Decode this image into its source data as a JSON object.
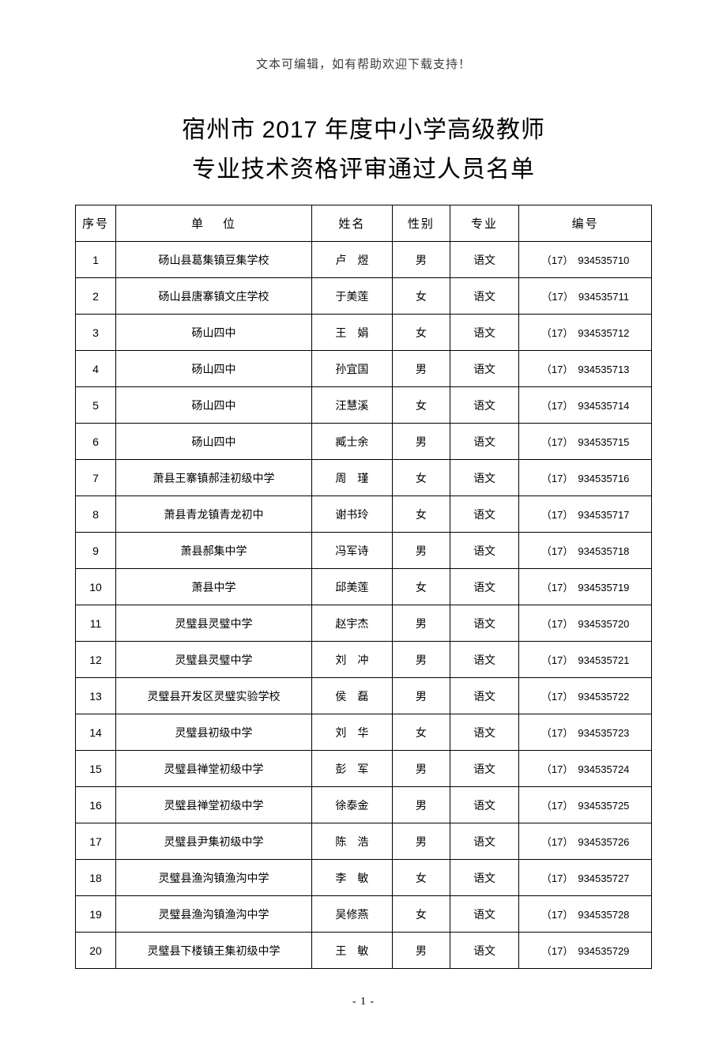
{
  "header_note": "文本可编辑，如有帮助欢迎下载支持！",
  "title_line_1_prefix": "宿州市 ",
  "title_line_1_year": "2017",
  "title_line_1_suffix": " 年度中小学高级教师",
  "title_line_2": "专业技术资格评审通过人员名单",
  "columns": {
    "seq": "序号",
    "unit_a": "单",
    "unit_b": "位",
    "name": "姓名",
    "gender": "性别",
    "subject": "专业",
    "code": "编号"
  },
  "code_prefix": "（17）",
  "page_number": "- 1 -",
  "rows": [
    {
      "seq": "1",
      "unit": "砀山县葛集镇豆集学校",
      "name": "卢　煜",
      "name_spaced": true,
      "gender": "男",
      "subject": "语文",
      "code": "934535710"
    },
    {
      "seq": "2",
      "unit": "砀山县唐寨镇文庄学校",
      "name": "于美莲",
      "name_spaced": false,
      "gender": "女",
      "subject": "语文",
      "code": "934535711"
    },
    {
      "seq": "3",
      "unit": "砀山四中",
      "name": "王　娟",
      "name_spaced": true,
      "gender": "女",
      "subject": "语文",
      "code": "934535712"
    },
    {
      "seq": "4",
      "unit": "砀山四中",
      "name": "孙宜国",
      "name_spaced": false,
      "gender": "男",
      "subject": "语文",
      "code": "934535713"
    },
    {
      "seq": "5",
      "unit": "砀山四中",
      "name": "汪慧溪",
      "name_spaced": false,
      "gender": "女",
      "subject": "语文",
      "code": "934535714"
    },
    {
      "seq": "6",
      "unit": "砀山四中",
      "name": "臧士余",
      "name_spaced": false,
      "gender": "男",
      "subject": "语文",
      "code": "934535715"
    },
    {
      "seq": "7",
      "unit": "萧县王寨镇郝洼初级中学",
      "name": "周　瑾",
      "name_spaced": true,
      "gender": "女",
      "subject": "语文",
      "code": "934535716"
    },
    {
      "seq": "8",
      "unit": "萧县青龙镇青龙初中",
      "name": "谢书玲",
      "name_spaced": false,
      "gender": "女",
      "subject": "语文",
      "code": "934535717"
    },
    {
      "seq": "9",
      "unit": "萧县郝集中学",
      "name": "冯军诗",
      "name_spaced": false,
      "gender": "男",
      "subject": "语文",
      "code": "934535718"
    },
    {
      "seq": "10",
      "unit": "萧县中学",
      "name": "邱美莲",
      "name_spaced": false,
      "gender": "女",
      "subject": "语文",
      "code": "934535719"
    },
    {
      "seq": "11",
      "unit": "灵璧县灵璧中学",
      "name": "赵宇杰",
      "name_spaced": false,
      "gender": "男",
      "subject": "语文",
      "code": "934535720"
    },
    {
      "seq": "12",
      "unit": "灵璧县灵璧中学",
      "name": "刘　冲",
      "name_spaced": true,
      "gender": "男",
      "subject": "语文",
      "code": "934535721"
    },
    {
      "seq": "13",
      "unit": "灵璧县开发区灵璧实验学校",
      "name": "侯　磊",
      "name_spaced": true,
      "gender": "男",
      "subject": "语文",
      "code": "934535722"
    },
    {
      "seq": "14",
      "unit": "灵璧县初级中学",
      "name": "刘　华",
      "name_spaced": true,
      "gender": "女",
      "subject": "语文",
      "code": "934535723"
    },
    {
      "seq": "15",
      "unit": "灵璧县禅堂初级中学",
      "name": "彭　军",
      "name_spaced": true,
      "gender": "男",
      "subject": "语文",
      "code": "934535724"
    },
    {
      "seq": "16",
      "unit": "灵璧县禅堂初级中学",
      "name": "徐泰金",
      "name_spaced": false,
      "gender": "男",
      "subject": "语文",
      "code": "934535725"
    },
    {
      "seq": "17",
      "unit": "灵璧县尹集初级中学",
      "name": "陈　浩",
      "name_spaced": true,
      "gender": "男",
      "subject": "语文",
      "code": "934535726"
    },
    {
      "seq": "18",
      "unit": "灵璧县渔沟镇渔沟中学",
      "name": "李　敏",
      "name_spaced": true,
      "gender": "女",
      "subject": "语文",
      "code": "934535727"
    },
    {
      "seq": "19",
      "unit": "灵璧县渔沟镇渔沟中学",
      "name": "吴修燕",
      "name_spaced": false,
      "gender": "女",
      "subject": "语文",
      "code": "934535728"
    },
    {
      "seq": "20",
      "unit": "灵璧县下楼镇王集初级中学",
      "name": "王　敏",
      "name_spaced": true,
      "gender": "男",
      "subject": "语文",
      "code": "934535729"
    }
  ]
}
